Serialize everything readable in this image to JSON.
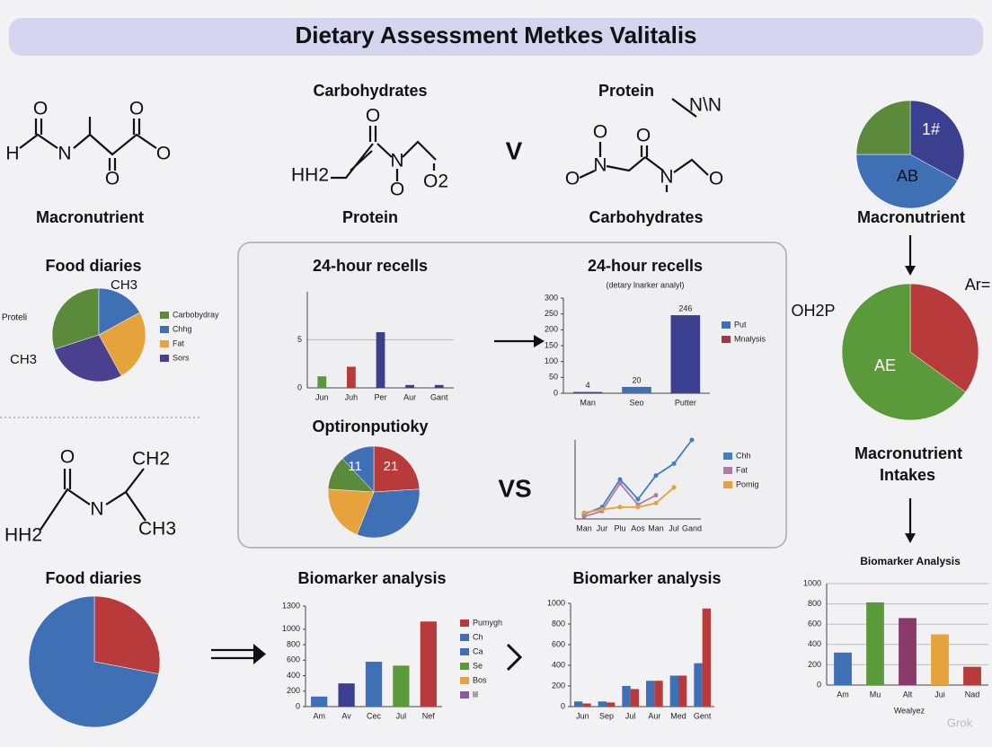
{
  "title": "Dietary Assessment Metkes Valitalis",
  "labels": [
    "Carbohydrates",
    "Protein",
    "Macronutrient",
    "Protein",
    "Carbohydrates",
    "V",
    "VS",
    "Macronutrient",
    "Intakes"
  ],
  "molecules": [
    {
      "atoms": [
        "O",
        "H",
        "N",
        "O",
        "O",
        "O"
      ]
    },
    {
      "atoms": [
        "O",
        "HH2",
        "N",
        "O",
        "O2"
      ]
    },
    {
      "atoms": [
        "O",
        "N",
        "O",
        "O",
        "N",
        "O",
        "N\\N"
      ]
    },
    {
      "atoms": [
        "O",
        "CH2",
        "N",
        "HH2",
        "CH3"
      ]
    }
  ],
  "watermark": "Grok",
  "chart_data": [
    {
      "type": "pie",
      "title": "Food diaries",
      "categories": [
        "Carbobydray",
        "Chhg",
        "Fat",
        "Sors"
      ],
      "values": [
        30,
        17,
        25,
        28
      ],
      "colors": [
        "#5a8a3a",
        "#3f6fb5",
        "#e6a33b",
        "#4b3f8f"
      ],
      "annotations": [
        "Proteli",
        "CH3",
        "CH3"
      ]
    },
    {
      "type": "bar",
      "title": "24-hour recells",
      "categories": [
        "Jun",
        "Juh",
        "Per",
        "Aur",
        "Gant"
      ],
      "values": [
        1.2,
        2.2,
        5.8,
        0.3,
        0.3
      ],
      "colors": [
        "#5a9a3a",
        "#b83a3a",
        "#3b3f8f",
        "#3b3f8f",
        "#3b3f8f"
      ],
      "ylim": [
        0,
        10
      ],
      "yticks": [
        0,
        5
      ],
      "grid": true
    },
    {
      "type": "bar",
      "title": "24-hour recells",
      "subtitle": "(detary lnarker analyl)",
      "categories": [
        "Man",
        "Seo",
        "Putter"
      ],
      "values": [
        4,
        20,
        246
      ],
      "colors": [
        "#3b3f8f",
        "#3f6fb5",
        "#3b3f8f"
      ],
      "ylim": [
        0,
        300
      ],
      "yticks": [
        0,
        50,
        100,
        150,
        200,
        250,
        300
      ],
      "show_values": true,
      "legend": [
        {
          "name": "Put",
          "color": "#3f6fb5"
        },
        {
          "name": "Mnalysis",
          "color": "#9b3a4a"
        }
      ]
    },
    {
      "type": "pie",
      "title": "Optironputioky",
      "values": [
        24,
        32,
        20,
        12,
        12
      ],
      "colors": [
        "#b83a3a",
        "#3f6fb5",
        "#e6a33b",
        "#5a8a3a",
        "#3f6fb5"
      ],
      "annotations": [
        "11",
        "21"
      ]
    },
    {
      "type": "line",
      "categories": [
        "Man",
        "Jur",
        "Plu",
        "Aos",
        "Man",
        "Jul",
        "Gand"
      ],
      "ylim": [
        0,
        10
      ],
      "series": [
        {
          "name": "Chh",
          "color": "#3f7fc5",
          "values": [
            0.6,
            1.5,
            5.0,
            2.5,
            5.5,
            7.0,
            10
          ]
        },
        {
          "name": "Fat",
          "color": "#b07aa8",
          "values": [
            0.3,
            1.0,
            4.5,
            1.8,
            3.0,
            null,
            null
          ]
        },
        {
          "name": "Pomig",
          "color": "#e6a33b",
          "values": [
            0.8,
            1.2,
            1.5,
            1.5,
            2.0,
            4.0,
            null
          ]
        }
      ]
    },
    {
      "type": "pie",
      "title": "Food diaries",
      "values": [
        28,
        72
      ],
      "colors": [
        "#b83a3a",
        "#3f6fb5"
      ]
    },
    {
      "type": "bar",
      "title": "Biomarker analysis",
      "categories": [
        "Am",
        "Av",
        "Cec",
        "Jul",
        "Nef"
      ],
      "values": [
        130,
        300,
        580,
        530,
        1100
      ],
      "colors": [
        "#3f6fb5",
        "#3b3f8f",
        "#3f6fb5",
        "#5a9a3a",
        "#b83a3a"
      ],
      "ylim": [
        0,
        1300
      ],
      "yticks": [
        0,
        200,
        400,
        600,
        800,
        1000,
        1300
      ],
      "legend": [
        {
          "name": "Pumygh",
          "color": "#b83a3a"
        },
        {
          "name": "Ch",
          "color": "#3f6fb5"
        },
        {
          "name": "Ca",
          "color": "#3f6fb5"
        },
        {
          "name": "Se",
          "color": "#5a9a3a"
        },
        {
          "name": "Bos",
          "color": "#e6a33b"
        },
        {
          "name": "lil",
          "color": "#8a5aa8"
        }
      ]
    },
    {
      "type": "bar",
      "title": "Biomarker analysis",
      "categories": [
        "Jun",
        "Sep",
        "Jul",
        "Aur",
        "Med",
        "Gent"
      ],
      "ylim": [
        0,
        1000
      ],
      "yticks": [
        0,
        200,
        400,
        600,
        800,
        1000
      ],
      "series": [
        {
          "color": "#3f6fb5",
          "values": [
            50,
            50,
            200,
            250,
            300,
            420
          ]
        },
        {
          "color": "#b83a3a",
          "values": [
            30,
            40,
            170,
            250,
            300,
            950
          ]
        }
      ]
    },
    {
      "type": "bar",
      "title": "Biomarker Analysis",
      "categories": [
        "Am",
        "Mu",
        "Alt",
        "Jui",
        "Nad"
      ],
      "values": [
        320,
        815,
        660,
        500,
        180
      ],
      "colors": [
        "#3f6fb5",
        "#5a9a3a",
        "#8a3a6a",
        "#e6a33b",
        "#b83a3a"
      ],
      "ylim": [
        0,
        1000
      ],
      "yticks": [
        0,
        200,
        400,
        600,
        800,
        1000
      ],
      "grid": true,
      "x_label": "Wealyez"
    },
    {
      "type": "pie",
      "title": "Macronutrient",
      "values": [
        33,
        42,
        25
      ],
      "colors": [
        "#3b3f8f",
        "#3f6fb5",
        "#5a8a3a"
      ],
      "annotations": [
        "1#",
        "AB"
      ]
    },
    {
      "type": "pie",
      "values": [
        35,
        65
      ],
      "colors": [
        "#b83a3a",
        "#5a9a3a"
      ],
      "annotations": [
        "AE",
        "OH2P",
        "Ar="
      ]
    }
  ]
}
